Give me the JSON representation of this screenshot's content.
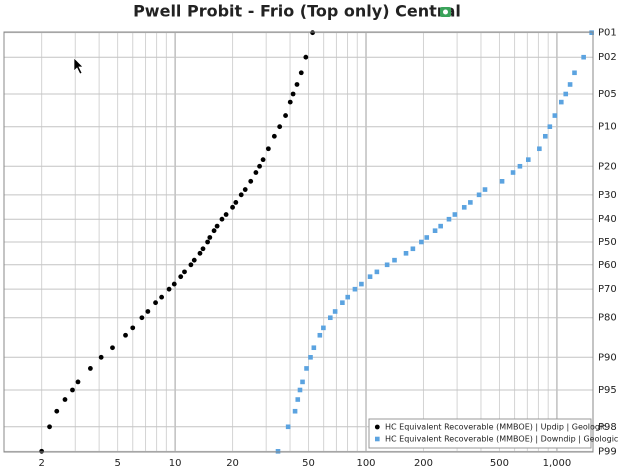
{
  "chart_data": {
    "type": "scatter",
    "title": "Pwell Probit - Frio (Top only) Central",
    "x_scale": "log",
    "y_scale": "probit",
    "grid": true,
    "legend": "lower right",
    "xlim": [
      1.27,
      1545
    ],
    "ylim": [
      0.98,
      99.02
    ],
    "xticks": [
      2,
      5,
      10,
      20,
      50,
      100,
      200,
      500,
      {
        "value": 1000,
        "label": "1,000"
      }
    ],
    "xgrid": [
      2,
      3,
      4,
      5,
      6,
      7,
      8,
      9,
      10,
      20,
      30,
      40,
      50,
      60,
      70,
      80,
      90,
      100,
      200,
      300,
      400,
      500,
      600,
      700,
      800,
      900,
      1000
    ],
    "yticks": [
      {
        "value": 1,
        "label": "P01"
      },
      {
        "value": 2,
        "label": "P02"
      },
      {
        "value": 5,
        "label": "P05"
      },
      {
        "value": 10,
        "label": "P10"
      },
      {
        "value": 20,
        "label": "P20"
      },
      {
        "value": 30,
        "label": "P30"
      },
      {
        "value": 40,
        "label": "P40"
      },
      {
        "value": 50,
        "label": "P50"
      },
      {
        "value": 60,
        "label": "P60"
      },
      {
        "value": 70,
        "label": "P70"
      },
      {
        "value": 80,
        "label": "P80"
      },
      {
        "value": 90,
        "label": "P90"
      },
      {
        "value": 95,
        "label": "P95"
      },
      {
        "value": 98,
        "label": "P98"
      },
      {
        "value": 99,
        "label": "P99"
      }
    ],
    "series": [
      {
        "name": "HC Equivalent Recoverable (MMBOE) | Updip | Geologic",
        "color": "#000000",
        "marker": "circle",
        "x": [
          52.5,
          48.4,
          45.8,
          43.5,
          41.5,
          40.1,
          37.9,
          35.3,
          33.1,
          30.8,
          28.9,
          27.7,
          26.5,
          24.9,
          23.3,
          22.2,
          20.8,
          20,
          18.5,
          17.6,
          16.6,
          16.0,
          15.2,
          14.8,
          14.0,
          13.5,
          12.6,
          12.1,
          11.2,
          10.7,
          9.9,
          9.3,
          8.5,
          7.9,
          7.2,
          6.7,
          6.0,
          5.5,
          4.7,
          4.1,
          3.6,
          3.1,
          2.9,
          2.65,
          2.4,
          2.2,
          2.0
        ],
        "values": [
          1,
          2,
          3,
          4,
          5,
          6,
          8,
          10,
          12,
          15,
          18,
          20,
          22,
          25,
          28,
          30,
          33,
          35,
          38,
          40,
          43,
          45,
          48,
          50,
          53,
          55,
          58,
          60,
          63,
          65,
          68,
          70,
          73,
          75,
          78,
          80,
          83,
          85,
          88,
          90,
          92,
          94,
          95,
          96,
          97,
          98,
          99
        ]
      },
      {
        "name": "HC Equivalent Recoverable (MMBOE) | Downdip | Geologic",
        "color": "#5ba3e0",
        "marker": "square",
        "x": [
          1520,
          1380,
          1236,
          1172,
          1112,
          1054,
          975,
          918,
          869,
          809,
          708,
          640,
          589,
          516,
          420,
          391,
          352,
          327,
          292,
          272,
          246,
          230,
          208,
          195,
          176,
          162,
          141,
          129,
          114,
          105,
          94.6,
          87.5,
          80.2,
          75.2,
          68.9,
          65,
          59.8,
          57.3,
          53.3,
          51.2,
          48.8,
          46.5,
          45.1,
          43.9,
          42.5,
          39.1,
          34.6
        ],
        "values": [
          1,
          2,
          3,
          4,
          5,
          6,
          8,
          10,
          12,
          15,
          18,
          20,
          22,
          25,
          28,
          30,
          33,
          35,
          38,
          40,
          43,
          45,
          48,
          50,
          53,
          55,
          58,
          60,
          63,
          65,
          68,
          70,
          73,
          75,
          78,
          80,
          83,
          85,
          88,
          90,
          92,
          94,
          95,
          96,
          97,
          98,
          99
        ]
      }
    ]
  }
}
